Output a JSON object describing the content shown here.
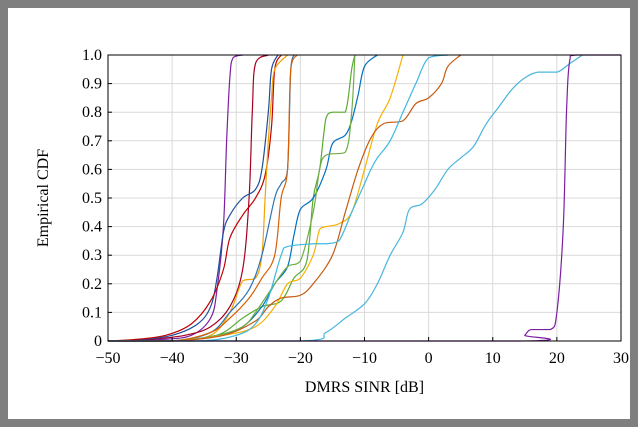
{
  "chart_data": {
    "type": "line",
    "title": "",
    "xlabel": "DMRS  SINR  [dB]",
    "ylabel": "Empirical CDF",
    "xlim": [
      -50,
      30
    ],
    "ylim": [
      0,
      1
    ],
    "grid": true,
    "legend": "none",
    "x_ticks": [
      "−50",
      "−40",
      "−30",
      "−20",
      "−10",
      "0",
      "10",
      "20",
      "30"
    ],
    "y_ticks": [
      "0",
      "0.1",
      "0.2",
      "0.3",
      "0.4",
      "0.5",
      "0.6",
      "0.7",
      "0.8",
      "0.9",
      "1.0"
    ],
    "series": [
      {
        "color": "#7b1fa2",
        "points": [
          [
            -50,
            0
          ],
          [
            -42,
            0.005
          ],
          [
            -37,
            0.02
          ],
          [
            -34,
            0.08
          ],
          [
            -33,
            0.18
          ],
          [
            -32,
            0.4
          ],
          [
            -31.5,
            0.7
          ],
          [
            -31,
            0.92
          ],
          [
            -30.5,
            0.99
          ],
          [
            -29,
            1
          ]
        ]
      },
      {
        "color": "#a50021",
        "points": [
          [
            -50,
            0
          ],
          [
            -44,
            0.005
          ],
          [
            -38,
            0.02
          ],
          [
            -34,
            0.05
          ],
          [
            -31,
            0.12
          ],
          [
            -29,
            0.25
          ],
          [
            -28,
            0.5
          ],
          [
            -27.5,
            0.8
          ],
          [
            -27,
            0.97
          ],
          [
            -25,
            1
          ]
        ]
      },
      {
        "color": "#1f4e9a",
        "points": [
          [
            -50,
            0
          ],
          [
            -45,
            0.005
          ],
          [
            -40,
            0.02
          ],
          [
            -36,
            0.06
          ],
          [
            -34,
            0.12
          ],
          [
            -33,
            0.22
          ],
          [
            -32,
            0.38
          ],
          [
            -31,
            0.44
          ],
          [
            -29,
            0.5
          ],
          [
            -27,
            0.53
          ],
          [
            -26,
            0.6
          ],
          [
            -25,
            0.8
          ],
          [
            -24.5,
            0.95
          ],
          [
            -23.5,
            1
          ]
        ]
      },
      {
        "color": "#c00000",
        "points": [
          [
            -50,
            0
          ],
          [
            -46,
            0.005
          ],
          [
            -41,
            0.02
          ],
          [
            -37,
            0.06
          ],
          [
            -34,
            0.14
          ],
          [
            -32,
            0.25
          ],
          [
            -31,
            0.36
          ],
          [
            -29,
            0.44
          ],
          [
            -27,
            0.5
          ],
          [
            -25.5,
            0.58
          ],
          [
            -24.5,
            0.75
          ],
          [
            -24,
            0.95
          ],
          [
            -23,
            1
          ]
        ]
      },
      {
        "color": "#f0a500",
        "points": [
          [
            -50,
            0
          ],
          [
            -40,
            0
          ],
          [
            -34,
            0.02
          ],
          [
            -31,
            0.1
          ],
          [
            -29,
            0.21
          ],
          [
            -27,
            0.22
          ],
          [
            -26,
            0.3
          ],
          [
            -25.5,
            0.5
          ],
          [
            -25,
            0.7
          ],
          [
            -24.5,
            0.85
          ],
          [
            -24,
            0.95
          ],
          [
            -22,
            1
          ]
        ]
      },
      {
        "color": "#2e75b6",
        "points": [
          [
            -50,
            0
          ],
          [
            -40,
            0
          ],
          [
            -34,
            0.03
          ],
          [
            -31,
            0.1
          ],
          [
            -28,
            0.18
          ],
          [
            -26,
            0.3
          ],
          [
            -24,
            0.5
          ],
          [
            -23,
            0.55
          ],
          [
            -22,
            0.6
          ],
          [
            -21.5,
            0.95
          ],
          [
            -21,
            1
          ]
        ]
      },
      {
        "color": "#d95f02",
        "points": [
          [
            -50,
            0
          ],
          [
            -40,
            0
          ],
          [
            -34,
            0.03
          ],
          [
            -31,
            0.08
          ],
          [
            -28,
            0.15
          ],
          [
            -26,
            0.22
          ],
          [
            -24,
            0.3
          ],
          [
            -23,
            0.5
          ],
          [
            -22,
            0.6
          ],
          [
            -21.5,
            0.95
          ],
          [
            -20.5,
            1
          ]
        ]
      },
      {
        "color": "#5aab32",
        "points": [
          [
            -50,
            0
          ],
          [
            -40,
            0
          ],
          [
            -33,
            0.02
          ],
          [
            -29,
            0.08
          ],
          [
            -26,
            0.12
          ],
          [
            -23,
            0.14
          ],
          [
            -21,
            0.22
          ],
          [
            -19,
            0.28
          ],
          [
            -18,
            0.5
          ],
          [
            -17,
            0.6
          ],
          [
            -16,
            0.78
          ],
          [
            -15,
            0.8
          ],
          [
            -13,
            0.8
          ],
          [
            -12,
            0.95
          ],
          [
            -11.5,
            1
          ]
        ]
      },
      {
        "color": "#0070c0",
        "points": [
          [
            -50,
            0
          ],
          [
            -40,
            0
          ],
          [
            -33,
            0.02
          ],
          [
            -29,
            0.05
          ],
          [
            -26,
            0.12
          ],
          [
            -24,
            0.2
          ],
          [
            -22,
            0.26
          ],
          [
            -21,
            0.37
          ],
          [
            -20,
            0.46
          ],
          [
            -18,
            0.5
          ],
          [
            -16,
            0.6
          ],
          [
            -15,
            0.69
          ],
          [
            -13,
            0.72
          ],
          [
            -12,
            0.77
          ],
          [
            -11,
            0.86
          ],
          [
            -10,
            0.96
          ],
          [
            -8,
            1
          ]
        ]
      },
      {
        "color": "#70ad47",
        "points": [
          [
            -50,
            0
          ],
          [
            -40,
            0
          ],
          [
            -33,
            0.02
          ],
          [
            -29,
            0.05
          ],
          [
            -27,
            0.1
          ],
          [
            -24,
            0.2
          ],
          [
            -22,
            0.26
          ],
          [
            -20,
            0.28
          ],
          [
            -18,
            0.45
          ],
          [
            -17,
            0.6
          ],
          [
            -16,
            0.65
          ],
          [
            -13,
            0.66
          ],
          [
            -12,
            0.8
          ],
          [
            -11.5,
            1
          ]
        ]
      },
      {
        "color": "#f6b100",
        "points": [
          [
            -50,
            0
          ],
          [
            -40,
            0
          ],
          [
            -32,
            0.02
          ],
          [
            -27,
            0.05
          ],
          [
            -24,
            0.12
          ],
          [
            -22,
            0.2
          ],
          [
            -20,
            0.22
          ],
          [
            -18,
            0.3
          ],
          [
            -17,
            0.39
          ],
          [
            -16,
            0.4
          ],
          [
            -14,
            0.41
          ],
          [
            -12,
            0.45
          ],
          [
            -10,
            0.6
          ],
          [
            -8,
            0.76
          ],
          [
            -6,
            0.85
          ],
          [
            -4,
            1
          ]
        ]
      },
      {
        "color": "#c55a11",
        "points": [
          [
            -50,
            0
          ],
          [
            -40,
            0
          ],
          [
            -32,
            0.02
          ],
          [
            -27,
            0.07
          ],
          [
            -25,
            0.12
          ],
          [
            -23,
            0.15
          ],
          [
            -20,
            0.16
          ],
          [
            -18,
            0.2
          ],
          [
            -15,
            0.3
          ],
          [
            -13,
            0.45
          ],
          [
            -11,
            0.6
          ],
          [
            -9,
            0.71
          ],
          [
            -7,
            0.76
          ],
          [
            -4,
            0.77
          ],
          [
            -2,
            0.83
          ],
          [
            0,
            0.85
          ],
          [
            2,
            0.9
          ],
          [
            3,
            0.96
          ],
          [
            5,
            1
          ]
        ]
      },
      {
        "color": "#3fb8e0",
        "points": [
          [
            -50,
            0
          ],
          [
            -36,
            0
          ],
          [
            -30,
            0.02
          ],
          [
            -27,
            0.06
          ],
          [
            -25,
            0.15
          ],
          [
            -23,
            0.3
          ],
          [
            -22,
            0.33
          ],
          [
            -18,
            0.34
          ],
          [
            -16,
            0.34
          ],
          [
            -14,
            0.35
          ],
          [
            -12,
            0.45
          ],
          [
            -10,
            0.55
          ],
          [
            -9,
            0.6
          ],
          [
            -8,
            0.64
          ],
          [
            -6,
            0.7
          ],
          [
            -4,
            0.8
          ],
          [
            -2,
            0.9
          ],
          [
            0,
            0.99
          ],
          [
            3,
            1
          ]
        ]
      },
      {
        "color": "#4bb5de",
        "points": [
          [
            -50,
            0
          ],
          [
            -20,
            0
          ],
          [
            -16,
            0.03
          ],
          [
            -13,
            0.08
          ],
          [
            -10,
            0.13
          ],
          [
            -8,
            0.2
          ],
          [
            -6,
            0.3
          ],
          [
            -4,
            0.38
          ],
          [
            -3,
            0.46
          ],
          [
            -1,
            0.48
          ],
          [
            1,
            0.53
          ],
          [
            3,
            0.6
          ],
          [
            5,
            0.64
          ],
          [
            7,
            0.68
          ],
          [
            9,
            0.76
          ],
          [
            11,
            0.82
          ],
          [
            13,
            0.88
          ],
          [
            15,
            0.92
          ],
          [
            17,
            0.94
          ],
          [
            20,
            0.94
          ],
          [
            22,
            0.97
          ],
          [
            24,
            1
          ]
        ]
      },
      {
        "color": "#7b1fa2",
        "points": [
          [
            -50,
            0
          ],
          [
            14,
            0
          ],
          [
            15,
            0.02
          ],
          [
            16,
            0.04
          ],
          [
            19,
            0.04
          ],
          [
            20,
            0.1
          ],
          [
            21,
            0.4
          ],
          [
            21.5,
            0.8
          ],
          [
            22,
            0.98
          ],
          [
            23,
            1
          ],
          [
            30,
            1
          ]
        ]
      }
    ]
  }
}
